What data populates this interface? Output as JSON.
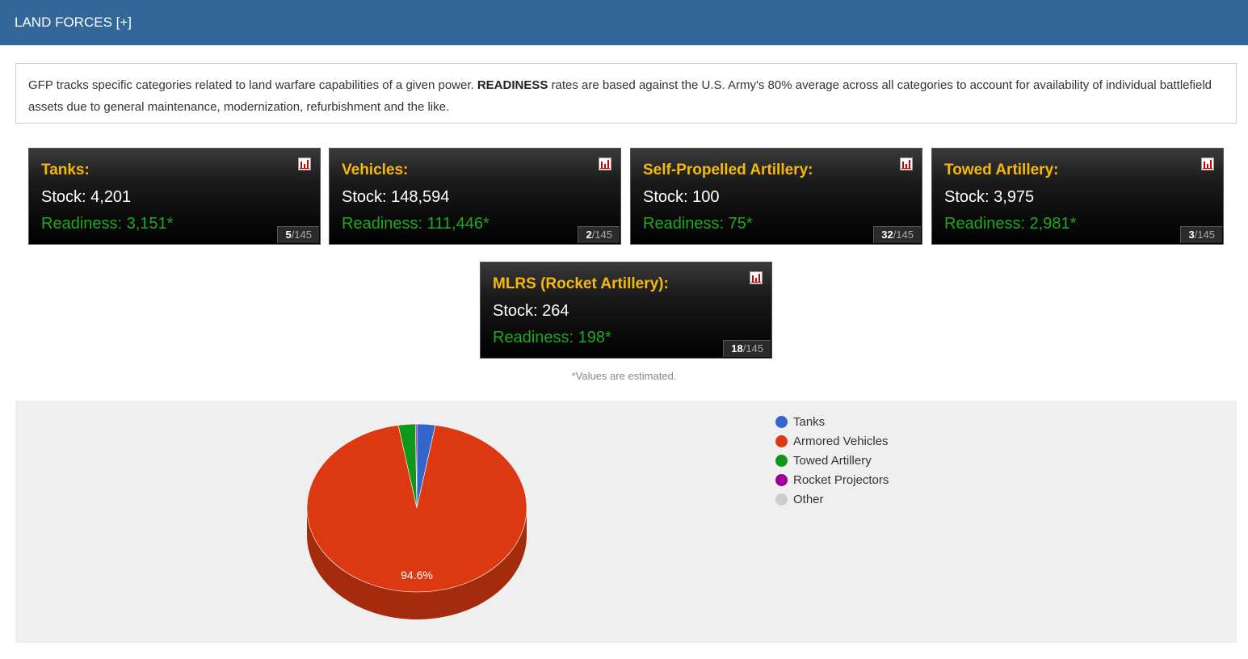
{
  "header": {
    "title": "LAND FORCES [+]"
  },
  "intro": {
    "part1": "GFP tracks specific categories related to land warfare capabilities of a given power. ",
    "bold": "READINESS",
    "part2": " rates are based against the U.S. Army's 80% average across all categories to account for availability of individual battlefield assets due to general maintenance, modernization, refurbishment and the like."
  },
  "cards": [
    {
      "title": "Tanks:",
      "stock": "Stock: 4,201",
      "readiness": "Readiness: 3,151*",
      "rank": "5",
      "total": "/145"
    },
    {
      "title": "Vehicles:",
      "stock": "Stock: 148,594",
      "readiness": "Readiness: 111,446*",
      "rank": "2",
      "total": "/145"
    },
    {
      "title": "Self-Propelled Artillery:",
      "stock": "Stock: 100",
      "readiness": "Readiness: 75*",
      "rank": "32",
      "total": "/145"
    },
    {
      "title": "Towed Artillery:",
      "stock": "Stock: 3,975",
      "readiness": "Readiness: 2,981*",
      "rank": "3",
      "total": "/145"
    },
    {
      "title": "MLRS (Rocket Artillery):",
      "stock": "Stock: 264",
      "readiness": "Readiness: 198*",
      "rank": "18",
      "total": "/145"
    }
  ],
  "note": "*Values are estimated.",
  "colors": {
    "header": "#336699",
    "title": "#f5b90a",
    "readiness": "#1fa821"
  },
  "icons": {
    "chart_button": "bar-chart-icon"
  },
  "chart_data": {
    "type": "pie",
    "labels": [
      "Tanks",
      "Armored Vehicles",
      "Towed Artillery",
      "Rocket Projectors",
      "Other"
    ],
    "values": [
      2.7,
      94.6,
      2.5,
      0.2,
      0.0
    ],
    "colors": [
      "#3366cc",
      "#dc3912",
      "#109618",
      "#990099",
      "#cccccc"
    ],
    "slice_labels": [
      "",
      "94.6%",
      "",
      "",
      ""
    ],
    "legend_position": "right"
  }
}
